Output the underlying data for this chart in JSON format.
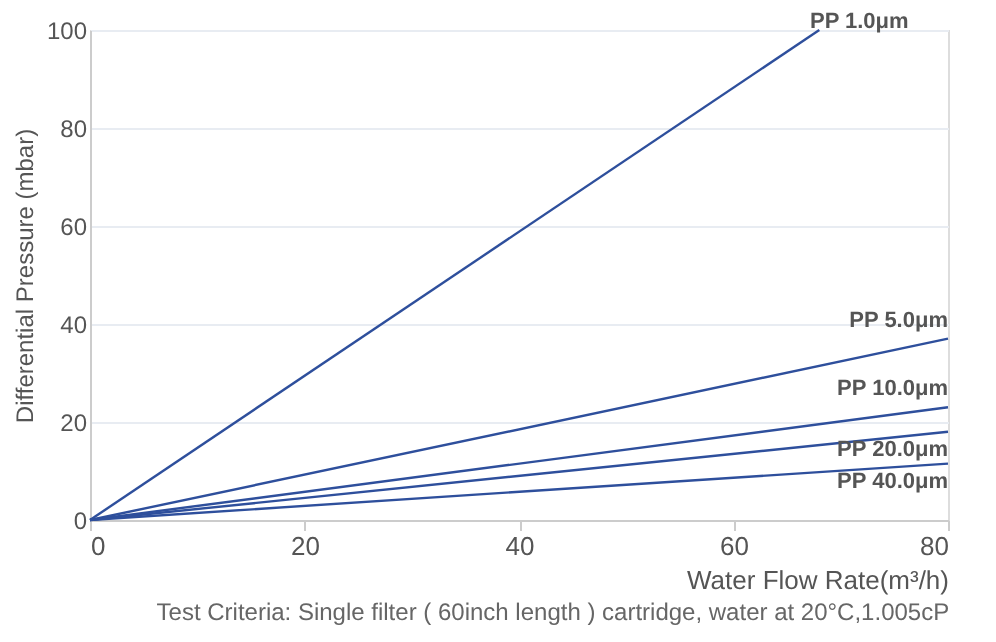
{
  "chart_data": {
    "type": "line",
    "xlabel": "Water Flow Rate(m³/h)",
    "ylabel": "Differential Pressure (mbar)",
    "x": [
      0,
      80
    ],
    "xlim": [
      0,
      80
    ],
    "xticks": [
      0,
      20,
      40,
      60,
      80
    ],
    "ylim": [
      0,
      100
    ],
    "yticks": [
      0,
      20,
      40,
      60,
      80,
      100
    ],
    "grid": "y",
    "marker": "none",
    "line_style": "solid",
    "series": [
      {
        "name": "PP 1.0μm",
        "color": "#2e4f9c",
        "x": [
          0,
          68
        ],
        "values": [
          0,
          100
        ]
      },
      {
        "name": "PP 5.0μm",
        "color": "#2e4f9c",
        "values": [
          0,
          37
        ]
      },
      {
        "name": "PP 10.0μm",
        "color": "#2e4f9c",
        "values": [
          0,
          23
        ]
      },
      {
        "name": "PP 20.0μm",
        "color": "#2e4f9c",
        "values": [
          0,
          18
        ]
      },
      {
        "name": "PP 40.0μm",
        "color": "#2e4f9c",
        "values": [
          0,
          11.5
        ]
      }
    ],
    "annotations": [
      "Test Criteria: Single filter ( 60inch length ) cartridge, water at 20°C,1.005cP"
    ]
  }
}
